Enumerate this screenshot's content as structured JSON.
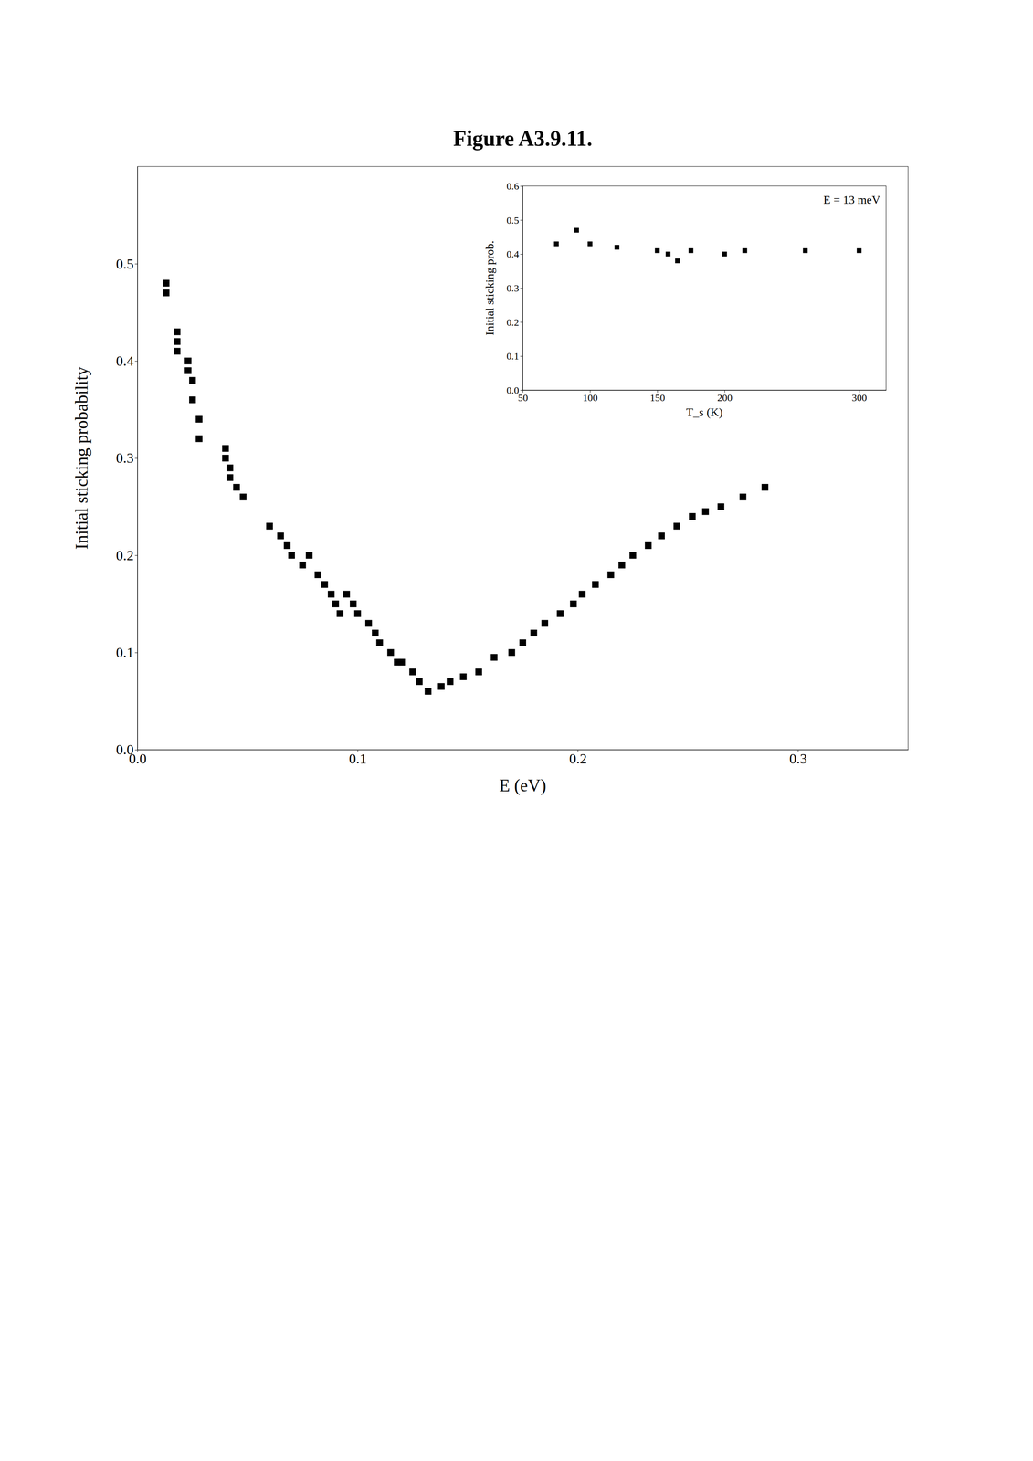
{
  "chart_data": [
    {
      "type": "scatter",
      "title": "Figure A3.9.11.",
      "x_label": "E (eV)",
      "y_label": "Initial sticking probability",
      "xlim": [
        0.0,
        0.35
      ],
      "ylim": [
        0.0,
        0.6
      ],
      "xticks": [
        {
          "value": 0.0,
          "label": "0.0"
        },
        0.1,
        0.2,
        0.3
      ],
      "yticks": [
        {
          "value": 0.0,
          "label": "0.0"
        },
        0.1,
        0.2,
        0.3,
        0.4,
        0.5
      ],
      "x": [
        0.013,
        0.013,
        0.018,
        0.018,
        0.018,
        0.023,
        0.023,
        0.025,
        0.025,
        0.028,
        0.028,
        0.04,
        0.04,
        0.042,
        0.042,
        0.045,
        0.048,
        0.06,
        0.065,
        0.068,
        0.07,
        0.075,
        0.078,
        0.082,
        0.085,
        0.088,
        0.09,
        0.092,
        0.095,
        0.098,
        0.1,
        0.105,
        0.108,
        0.11,
        0.115,
        0.118,
        0.12,
        0.125,
        0.128,
        0.132,
        0.138,
        0.142,
        0.148,
        0.155,
        0.162,
        0.17,
        0.175,
        0.18,
        0.185,
        0.192,
        0.198,
        0.202,
        0.208,
        0.215,
        0.22,
        0.225,
        0.232,
        0.238,
        0.245,
        0.252,
        0.258,
        0.265,
        0.275,
        0.285
      ],
      "values": [
        0.48,
        0.47,
        0.43,
        0.42,
        0.41,
        0.4,
        0.39,
        0.38,
        0.36,
        0.34,
        0.32,
        0.31,
        0.3,
        0.29,
        0.28,
        0.27,
        0.26,
        0.23,
        0.22,
        0.21,
        0.2,
        0.19,
        0.2,
        0.18,
        0.17,
        0.16,
        0.15,
        0.14,
        0.16,
        0.15,
        0.14,
        0.13,
        0.12,
        0.11,
        0.1,
        0.09,
        0.09,
        0.08,
        0.07,
        0.06,
        0.065,
        0.07,
        0.075,
        0.08,
        0.095,
        0.1,
        0.11,
        0.12,
        0.13,
        0.14,
        0.15,
        0.16,
        0.17,
        0.18,
        0.19,
        0.2,
        0.21,
        0.22,
        0.23,
        0.24,
        0.245,
        0.25,
        0.26,
        0.27
      ],
      "color": "#000000",
      "marker": "square",
      "grid": false
    },
    {
      "type": "scatter",
      "x_label": "T_s (K)",
      "y_label": "Initial sticking prob.",
      "annotations": [
        "E = 13 meV"
      ],
      "xlim": [
        50,
        320
      ],
      "ylim": [
        0.0,
        0.6
      ],
      "xticks": [
        50,
        100,
        150,
        200,
        300
      ],
      "yticks": [
        {
          "value": 0.0,
          "label": "0.0"
        },
        0.1,
        0.2,
        0.3,
        0.4,
        0.5,
        0.6
      ],
      "x": [
        75,
        90,
        100,
        120,
        150,
        158,
        165,
        175,
        200,
        215,
        260,
        300
      ],
      "values": [
        0.43,
        0.47,
        0.43,
        0.42,
        0.41,
        0.4,
        0.38,
        0.41,
        0.4,
        0.41,
        0.41,
        0.41
      ],
      "color": "#000000",
      "marker": "square",
      "grid": false
    }
  ]
}
